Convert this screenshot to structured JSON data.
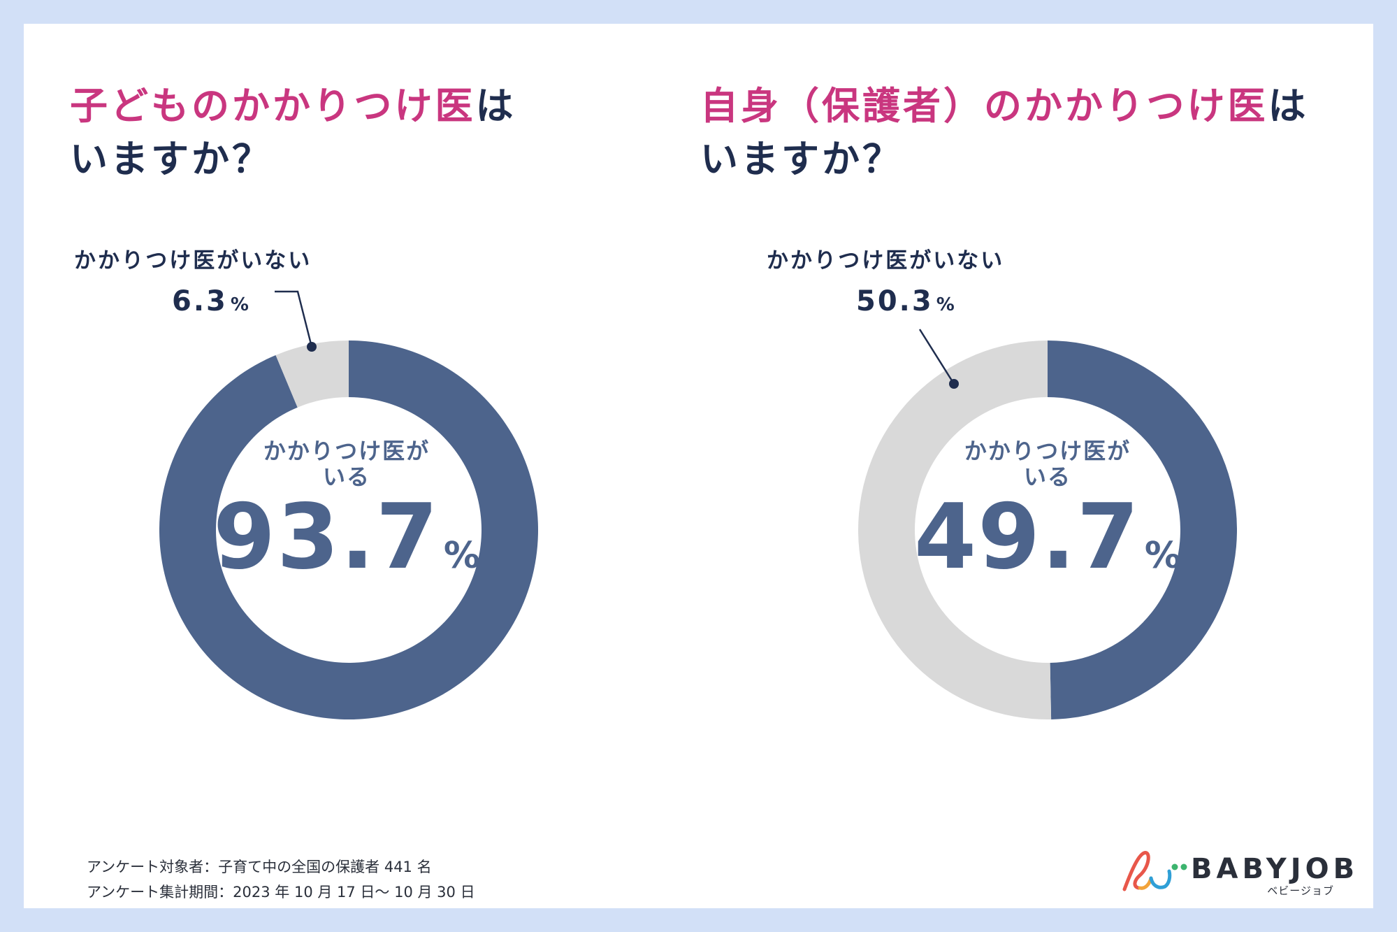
{
  "colors": {
    "accent": "#c9367f",
    "title": "#1f2d4e",
    "series_yes": "#4d648c",
    "series_no": "#d9d9d9",
    "background": "#d2e0f7"
  },
  "chart_data": [
    {
      "type": "pie",
      "title_highlight": "子どものかかりつけ医",
      "title_rest": "は",
      "title_line2": "いますか？",
      "center_label_line1": "かかりつけ医が",
      "center_label_line2": "いる",
      "center_value": "93.7",
      "center_unit": "%",
      "outside_label": "かかりつけ医がいない",
      "outside_value": "6.3",
      "outside_unit": "%",
      "slices": [
        {
          "name": "かかりつけ医がいる",
          "value": 93.7
        },
        {
          "name": "かかりつけ医がいない",
          "value": 6.3
        }
      ]
    },
    {
      "type": "pie",
      "title_highlight": "自身（保護者）のかかりつけ医",
      "title_rest": "は",
      "title_line2": "いますか？",
      "center_label_line1": "かかりつけ医が",
      "center_label_line2": "いる",
      "center_value": "49.7",
      "center_unit": "%",
      "outside_label": "かかりつけ医がいない",
      "outside_value": "50.3",
      "outside_unit": "%",
      "slices": [
        {
          "name": "かかりつけ医がいる",
          "value": 49.7
        },
        {
          "name": "かかりつけ医がいない",
          "value": 50.3
        }
      ]
    }
  ],
  "footer": {
    "line1": "アンケート対象者：子育て中の全国の保護者 441 名",
    "line2": "アンケート集計期間：2023 年 10 月 17 日～ 10 月 30 日"
  },
  "logo": {
    "name": "BABYJOB",
    "subtitle": "ベビージョブ"
  }
}
